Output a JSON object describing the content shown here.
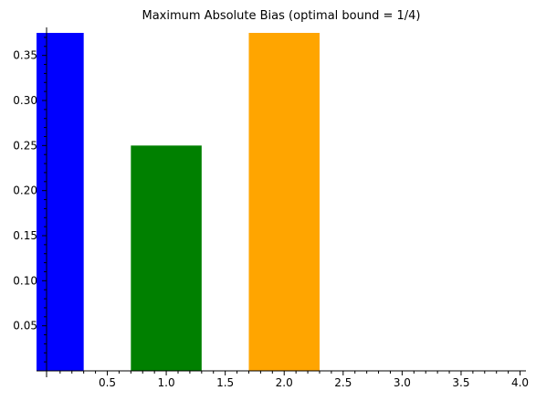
{
  "chart_data": {
    "type": "bar",
    "title": "Maximum Absolute Bias (optimal bound = 1/4)",
    "xlabel": "",
    "ylabel": "",
    "bars": [
      {
        "x": 0.0,
        "width": 0.6,
        "value": 0.375,
        "color": "#0000ff"
      },
      {
        "x": 1.0,
        "width": 0.6,
        "value": 0.25,
        "color": "#008000"
      },
      {
        "x": 2.0,
        "width": 0.6,
        "value": 0.375,
        "color": "#ffa500"
      }
    ],
    "xlim": [
      -0.1,
      4.05
    ],
    "ylim": [
      0.0,
      0.375
    ],
    "x_ticks": [
      {
        "value": 0.5,
        "label": "0.5"
      },
      {
        "value": 1.0,
        "label": "1.0"
      },
      {
        "value": 1.5,
        "label": "1.5"
      },
      {
        "value": 2.0,
        "label": "2.0"
      },
      {
        "value": 2.5,
        "label": "2.5"
      },
      {
        "value": 3.0,
        "label": "3.0"
      },
      {
        "value": 3.5,
        "label": "3.5"
      },
      {
        "value": 4.0,
        "label": "4.0"
      }
    ],
    "y_ticks": [
      {
        "value": 0.05,
        "label": "0.05"
      },
      {
        "value": 0.1,
        "label": "0.10"
      },
      {
        "value": 0.15,
        "label": "0.15"
      },
      {
        "value": 0.2,
        "label": "0.20"
      },
      {
        "value": 0.25,
        "label": "0.25"
      },
      {
        "value": 0.3,
        "label": "0.30"
      },
      {
        "value": 0.35,
        "label": "0.35"
      }
    ],
    "x_minor_step": 0.1,
    "y_minor_step": 0.01,
    "grid": false,
    "legend": "none"
  }
}
